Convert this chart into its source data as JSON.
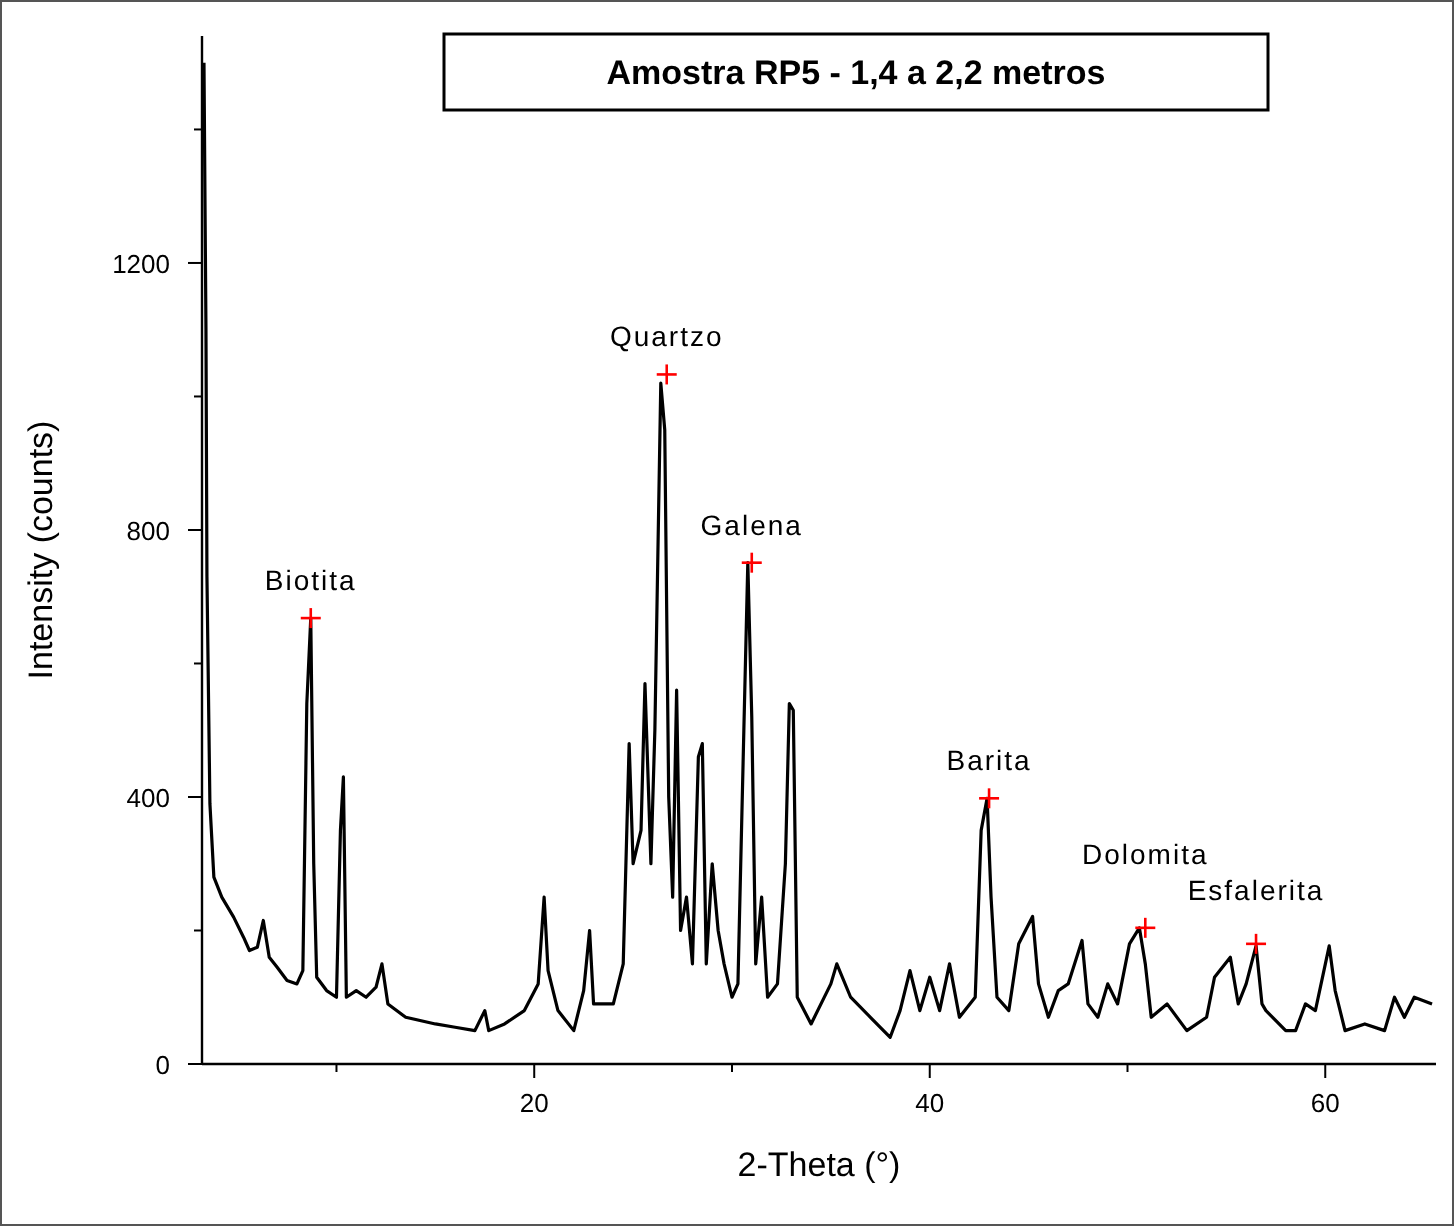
{
  "chart_data": {
    "type": "line",
    "title": "Amostra RP5 - 1,4 a 2,2 metros",
    "xlabel": "2-Theta (°)",
    "ylabel": "Intensity (counts)",
    "xlim": [
      3.2,
      65.6
    ],
    "ylim": [
      0,
      1540
    ],
    "xticks": [
      {
        "value": 10,
        "label": null
      },
      20,
      {
        "value": 30,
        "label": null
      },
      40,
      {
        "value": 50,
        "label": null
      },
      60
    ],
    "yticks": [
      0,
      {
        "value": 200,
        "label": null
      },
      400,
      {
        "value": 600,
        "label": null
      },
      800,
      {
        "value": 1000,
        "label": null
      },
      1200,
      {
        "value": 1400,
        "label": null
      }
    ],
    "grid": false,
    "marker": "none",
    "line_style": "solid",
    "series": [
      {
        "color": "#000000",
        "x": [
          3.3,
          3.4,
          3.45,
          3.6,
          3.8,
          4.2,
          4.8,
          5.3,
          5.6,
          6.0,
          6.3,
          6.6,
          7.0,
          7.5,
          8.0,
          8.3,
          8.5,
          8.7,
          8.85,
          9.0,
          9.5,
          10.0,
          10.2,
          10.35,
          10.5,
          11.0,
          11.5,
          12.0,
          12.3,
          12.6,
          13.5,
          15.0,
          16.0,
          17.0,
          17.5,
          17.7,
          18.5,
          19.5,
          20.2,
          20.5,
          20.7,
          21.2,
          22.0,
          22.5,
          22.8,
          23.0,
          24.0,
          24.5,
          24.8,
          25.0,
          25.4,
          25.6,
          25.9,
          26.1,
          26.4,
          26.6,
          26.8,
          27.0,
          27.2,
          27.4,
          27.7,
          28.0,
          28.3,
          28.5,
          28.7,
          29.0,
          29.3,
          29.6,
          30.0,
          30.3,
          30.6,
          30.8,
          31.0,
          31.2,
          31.5,
          31.8,
          32.3,
          32.7,
          32.9,
          33.1,
          33.3,
          34.0,
          35.0,
          35.3,
          36.0,
          37.0,
          38.0,
          38.5,
          39.0,
          39.5,
          40.0,
          40.5,
          41.0,
          41.5,
          42.3,
          42.6,
          42.9,
          43.1,
          43.4,
          44.0,
          44.5,
          45.2,
          45.5,
          46.0,
          46.5,
          47.0,
          47.7,
          48.0,
          48.5,
          49.0,
          49.5,
          50.1,
          50.6,
          50.9,
          51.2,
          52.0,
          53.0,
          54.0,
          54.4,
          55.2,
          55.6,
          56.0,
          56.5,
          56.8,
          57.0,
          58.0,
          58.5,
          59.0,
          59.5,
          60.2,
          60.5,
          61.0,
          62.0,
          63.0,
          63.5,
          64.0,
          64.5,
          65.4
        ],
        "values": [
          1500,
          1100,
          730,
          390,
          280,
          250,
          220,
          190,
          170,
          175,
          215,
          160,
          145,
          125,
          120,
          140,
          540,
          668,
          300,
          130,
          110,
          100,
          350,
          430,
          100,
          110,
          100,
          115,
          150,
          90,
          70,
          60,
          55,
          50,
          80,
          50,
          60,
          80,
          120,
          250,
          140,
          80,
          50,
          110,
          200,
          90,
          90,
          150,
          480,
          300,
          350,
          570,
          300,
          500,
          1020,
          950,
          400,
          250,
          560,
          200,
          250,
          150,
          460,
          480,
          150,
          300,
          200,
          150,
          100,
          120,
          500,
          751,
          520,
          150,
          250,
          100,
          120,
          300,
          540,
          530,
          100,
          60,
          120,
          150,
          100,
          70,
          40,
          80,
          140,
          80,
          130,
          80,
          150,
          70,
          100,
          350,
          398,
          250,
          100,
          80,
          180,
          221,
          120,
          70,
          110,
          120,
          185,
          90,
          70,
          120,
          90,
          180,
          204,
          150,
          70,
          90,
          50,
          70,
          130,
          160,
          90,
          120,
          177,
          90,
          80,
          50,
          50,
          90,
          80,
          177,
          110,
          50,
          60,
          50,
          100,
          70,
          100,
          90
        ]
      }
    ],
    "annotations": [
      {
        "text": "Biotita",
        "x": 8.7,
        "y": 668
      },
      {
        "text": "Quartzo",
        "x": 26.7,
        "y": 1033
      },
      {
        "text": "Galena",
        "x": 31.0,
        "y": 751
      },
      {
        "text": "Barita",
        "x": 43.0,
        "y": 398
      },
      {
        "text": "Dolomita",
        "x": 50.9,
        "y": 204
      },
      {
        "text": "Esfalerita",
        "x": 56.5,
        "y": 180
      }
    ]
  }
}
